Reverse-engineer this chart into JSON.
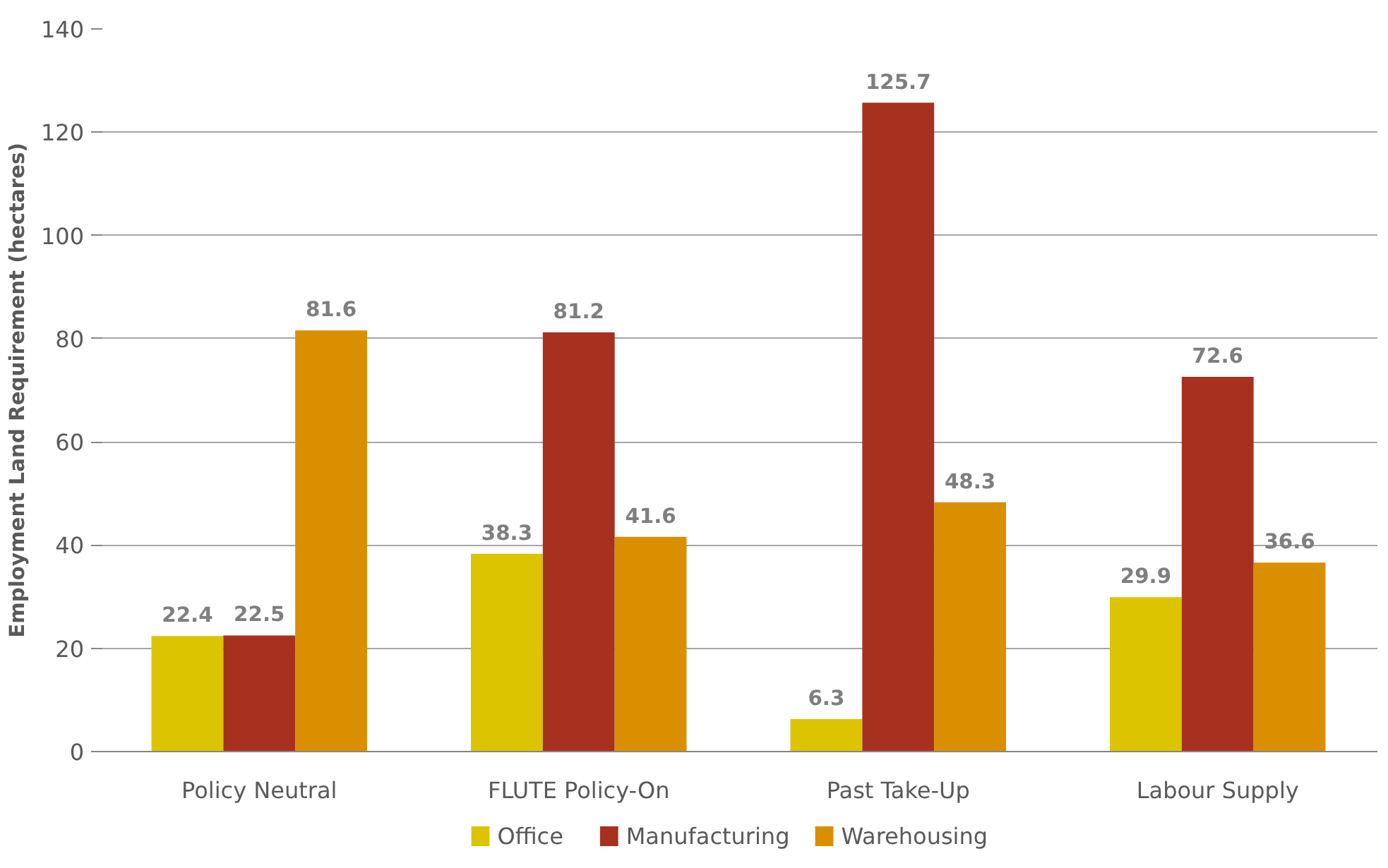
{
  "chart_data": {
    "type": "bar",
    "ylabel": "Employment Land Requirement (hectares)",
    "categories": [
      "Policy Neutral",
      "FLUTE Policy-On",
      "Past Take-Up",
      "Labour Supply"
    ],
    "series": [
      {
        "name": "Office",
        "color": "#dcc400",
        "values": [
          22.4,
          38.3,
          6.3,
          29.9
        ]
      },
      {
        "name": "Manufacturing",
        "color": "#a8301f",
        "values": [
          22.5,
          81.2,
          125.7,
          72.6
        ]
      },
      {
        "name": "Warehousing",
        "color": "#d98f00",
        "values": [
          81.6,
          41.6,
          48.3,
          36.6
        ]
      }
    ],
    "ylim": [
      0,
      140
    ],
    "yticks": [
      0,
      20,
      40,
      60,
      80,
      100,
      120,
      140
    ],
    "grid": "y",
    "legend": "bottom",
    "data_labels": true
  }
}
